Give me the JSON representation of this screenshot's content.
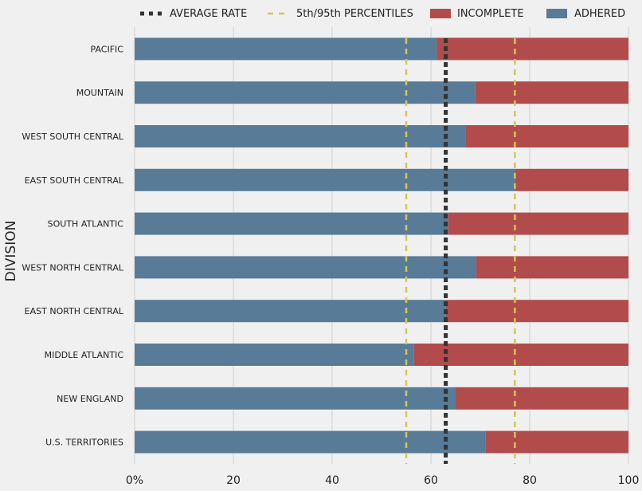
{
  "chart_data": {
    "type": "bar",
    "orientation": "horizontal",
    "stacked": true,
    "ylabel": "DIVISION",
    "xlabel": "",
    "xlim": [
      0,
      100
    ],
    "x_ticks": [
      "0%",
      "20",
      "40",
      "60",
      "80",
      "100"
    ],
    "grid": true,
    "legend_position": "top",
    "categories": [
      "PACIFIC",
      "MOUNTAIN",
      "WEST SOUTH CENTRAL",
      "EAST SOUTH CENTRAL",
      "SOUTH ATLANTIC",
      "WEST NORTH CENTRAL",
      "EAST NORTH CENTRAL",
      "MIDDLE ATLANTIC",
      "NEW ENGLAND",
      "U.S. TERRITORIES"
    ],
    "series": [
      {
        "name": "ADHERED",
        "color": "#587b97",
        "values": [
          61.2,
          69.0,
          67.0,
          77.0,
          63.5,
          69.2,
          63.0,
          56.5,
          65.0,
          71.0
        ]
      },
      {
        "name": "INCOMPLETE",
        "color": "#b24c4c",
        "values": [
          38.8,
          31.0,
          33.0,
          23.0,
          36.5,
          30.8,
          37.0,
          43.5,
          35.0,
          29.0
        ]
      }
    ],
    "reference_lines": [
      {
        "name": "AVERAGE RATE",
        "value": 63.0,
        "color": "#333333",
        "style": "thick-dotted"
      },
      {
        "name": "5th/95th PERCENTILES",
        "values": [
          55.0,
          77.0
        ],
        "color": "#d4c654",
        "style": "dashed"
      }
    ],
    "legend": [
      "AVERAGE RATE",
      "5th/95th PERCENTILES",
      "INCOMPLETE",
      "ADHERED"
    ]
  }
}
